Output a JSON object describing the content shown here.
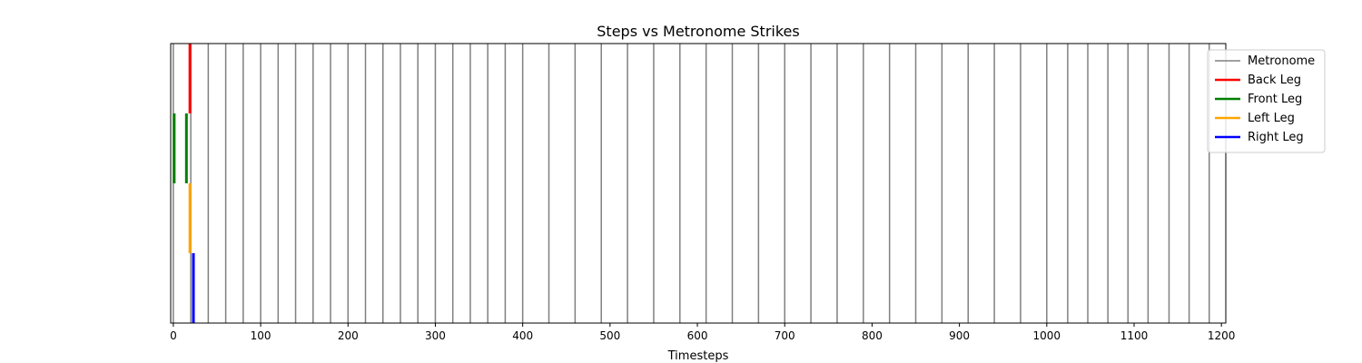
{
  "chart_data": {
    "type": "event-lines",
    "title": "Steps vs Metronome Strikes",
    "xlabel": "Timesteps",
    "ylabel": "",
    "xlim": [
      -3,
      1205
    ],
    "xticks": [
      0,
      100,
      200,
      300,
      400,
      500,
      600,
      700,
      800,
      900,
      1000,
      1100,
      1200
    ],
    "legend_position": "upper-right-outside",
    "metronome": {
      "name": "Metronome",
      "color": "#808080",
      "x": [
        0,
        20,
        40,
        60,
        80,
        100,
        120,
        140,
        160,
        180,
        200,
        220,
        240,
        260,
        280,
        300,
        320,
        340,
        360,
        380,
        400,
        430,
        460,
        490,
        520,
        550,
        580,
        610,
        640,
        670,
        700,
        730,
        760,
        790,
        820,
        850,
        880,
        910,
        940,
        970,
        1000,
        1024,
        1047,
        1070,
        1093,
        1116,
        1140,
        1163,
        1186
      ]
    },
    "series": [
      {
        "name": "Back Leg",
        "color": "#ff0000",
        "row": 0,
        "x": [
          19
        ]
      },
      {
        "name": "Front Leg",
        "color": "#008000",
        "row": 1,
        "x": [
          1,
          15
        ]
      },
      {
        "name": "Left Leg",
        "color": "#ffa500",
        "row": 2,
        "x": [
          19
        ]
      },
      {
        "name": "Right Leg",
        "color": "#0000ff",
        "row": 3,
        "x": [
          23
        ]
      }
    ]
  }
}
